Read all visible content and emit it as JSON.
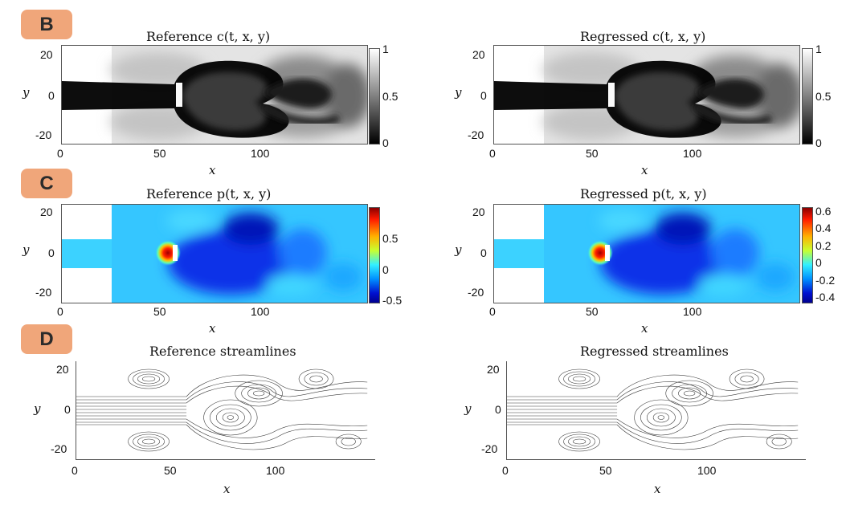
{
  "badges": {
    "b": "B",
    "c": "C",
    "d": "D"
  },
  "row_b": {
    "left_title": "Reference c(t, x, y)",
    "right_title": "Regressed c(t, x, y)",
    "xlabel": "x",
    "ylabel": "y",
    "xticks": [
      "0",
      "50",
      "100"
    ],
    "yticks": [
      "20",
      "0",
      "-20"
    ],
    "colorbar_ticks": [
      "1",
      "0.5",
      "0"
    ]
  },
  "row_c": {
    "left_title": "Reference p(t, x, y)",
    "right_title": "Regressed p(t, x, y)",
    "xlabel": "x",
    "ylabel": "y",
    "xticks": [
      "0",
      "50",
      "100"
    ],
    "yticks": [
      "20",
      "0",
      "-20"
    ],
    "left_colorbar_ticks": [
      "0.5",
      "0",
      "-0.5"
    ],
    "right_colorbar_ticks": [
      "0.6",
      "0.4",
      "0.2",
      "0",
      "-0.2",
      "-0.4"
    ]
  },
  "row_d": {
    "left_title": "Reference streamlines",
    "right_title": "Regressed streamlines",
    "xlabel": "x",
    "ylabel": "y",
    "xticks": [
      "0",
      "50",
      "100"
    ],
    "yticks": [
      "20",
      "0",
      "-20"
    ]
  },
  "colors": {
    "badge": "#f0a67a",
    "jet_low": "#00008f",
    "jet_mid": "#33c9ff",
    "jet_high": "#8a0000"
  }
}
